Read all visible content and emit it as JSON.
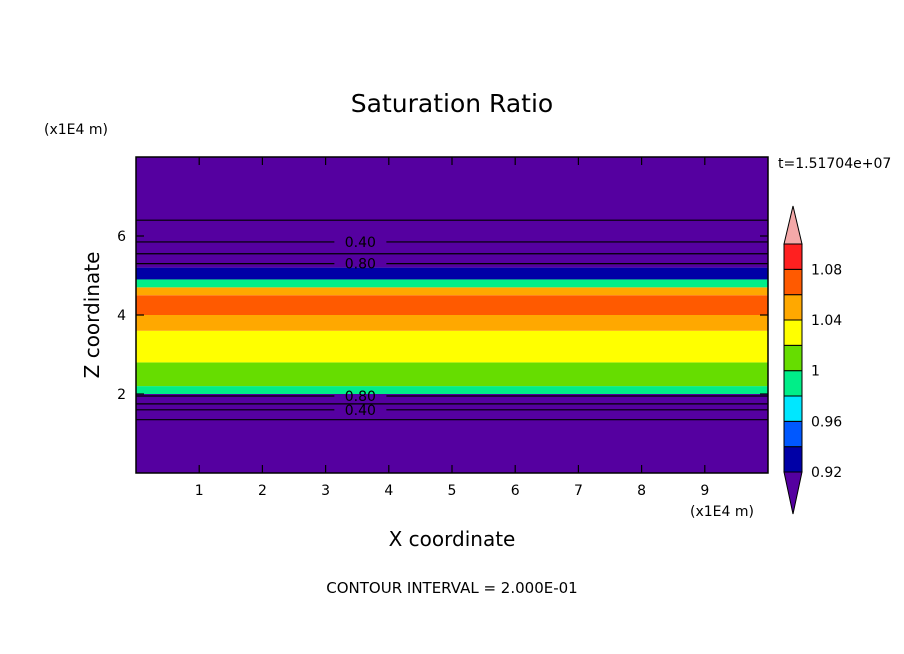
{
  "chart_data": {
    "type": "heatmap",
    "title": "Saturation Ratio",
    "xlabel": "X coordinate",
    "ylabel": "Z coordinate",
    "x_unit": "(x1E4 m)",
    "y_unit": "(x1E4 m)",
    "xlim": [
      0,
      10
    ],
    "ylim": [
      0,
      8
    ],
    "x_ticks": [
      1,
      2,
      3,
      4,
      5,
      6,
      7,
      8,
      9
    ],
    "y_ticks": [
      2,
      4,
      6
    ],
    "time_label": "t=1.51704e+07",
    "footer": "CONTOUR INTERVAL = 2.000E-01",
    "colorbar": {
      "levels": [
        0.92,
        0.94,
        0.96,
        0.98,
        1.0,
        1.02,
        1.04,
        1.06,
        1.08,
        1.1
      ],
      "colors": [
        "#5500a0",
        "#0000a6",
        "#0058ff",
        "#00e7ff",
        "#00ee88",
        "#66dd00",
        "#ffff00",
        "#ffa800",
        "#ff5a00",
        "#ff2020",
        "#f4a8a8"
      ],
      "tick_labels": [
        "0.92",
        "0.96",
        "1",
        "1.04",
        "1.08"
      ],
      "tick_values": [
        0.92,
        0.96,
        1.0,
        1.04,
        1.08
      ]
    },
    "field_layers": [
      {
        "z_bottom": 0.0,
        "z_top": 2.0,
        "value": 0.4
      },
      {
        "z_bottom": 2.0,
        "z_top": 2.2,
        "value": 0.99
      },
      {
        "z_bottom": 2.2,
        "z_top": 2.8,
        "value": 1.01
      },
      {
        "z_bottom": 2.8,
        "z_top": 3.6,
        "value": 1.03
      },
      {
        "z_bottom": 3.6,
        "z_top": 4.0,
        "value": 1.05
      },
      {
        "z_bottom": 4.0,
        "z_top": 4.5,
        "value": 1.07
      },
      {
        "z_bottom": 4.5,
        "z_top": 4.7,
        "value": 1.04
      },
      {
        "z_bottom": 4.7,
        "z_top": 4.9,
        "value": 0.98
      },
      {
        "z_bottom": 4.9,
        "z_top": 5.2,
        "value": 0.93
      },
      {
        "z_bottom": 5.2,
        "z_top": 8.0,
        "value": 0.4
      }
    ],
    "contours": [
      {
        "z": 1.35,
        "label": ""
      },
      {
        "z": 1.6,
        "label": "0.40"
      },
      {
        "z": 1.75,
        "label": ""
      },
      {
        "z": 1.95,
        "label": "0.80"
      },
      {
        "z": 5.3,
        "label": "0.80"
      },
      {
        "z": 5.55,
        "label": ""
      },
      {
        "z": 5.85,
        "label": "0.40"
      },
      {
        "z": 6.4,
        "label": ""
      }
    ]
  }
}
